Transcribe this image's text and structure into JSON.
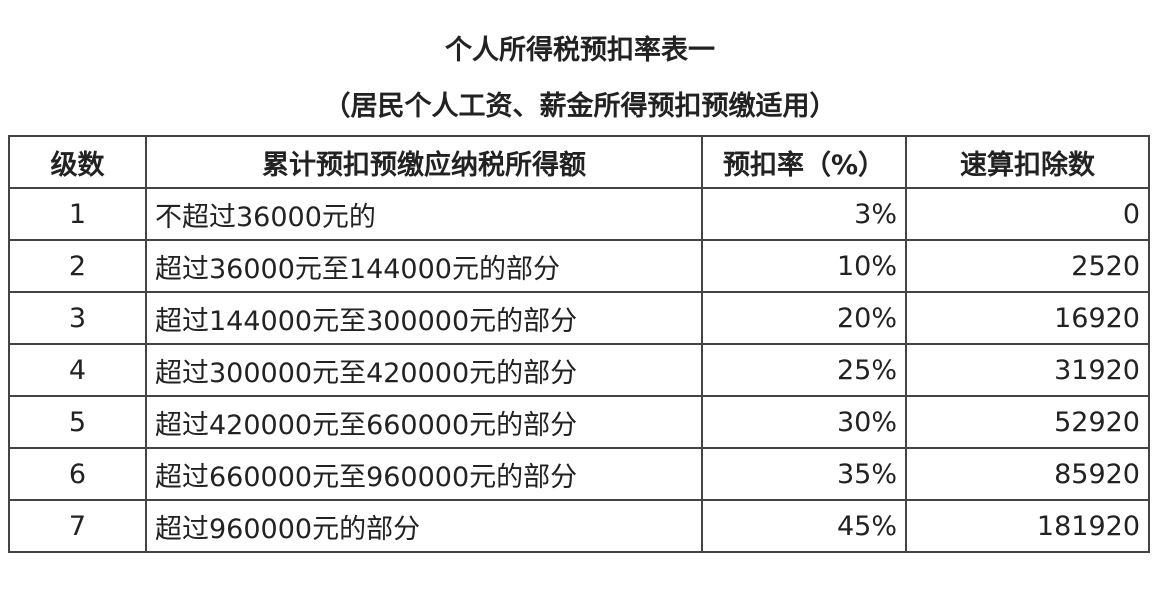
{
  "title": "个人所得税预扣率表一",
  "subtitle": "（居民个人工资、薪金所得预扣预缴适用）",
  "table": {
    "headers": [
      "级数",
      "累计预扣预缴应纳税所得额",
      "预扣率（%）",
      "速算扣除数"
    ],
    "rows": [
      [
        "1",
        "不超过36000元的",
        "3%",
        "0"
      ],
      [
        "2",
        "超过36000元至144000元的部分",
        "10%",
        "2520"
      ],
      [
        "3",
        "超过144000元至300000元的部分",
        "20%",
        "16920"
      ],
      [
        "4",
        "超过300000元至420000元的部分",
        "25%",
        "31920"
      ],
      [
        "5",
        "超过420000元至660000元的部分",
        "30%",
        "52920"
      ],
      [
        "6",
        "超过660000元至960000元的部分",
        "35%",
        "85920"
      ],
      [
        "7",
        "超过960000元的部分",
        "45%",
        "181920"
      ]
    ]
  }
}
